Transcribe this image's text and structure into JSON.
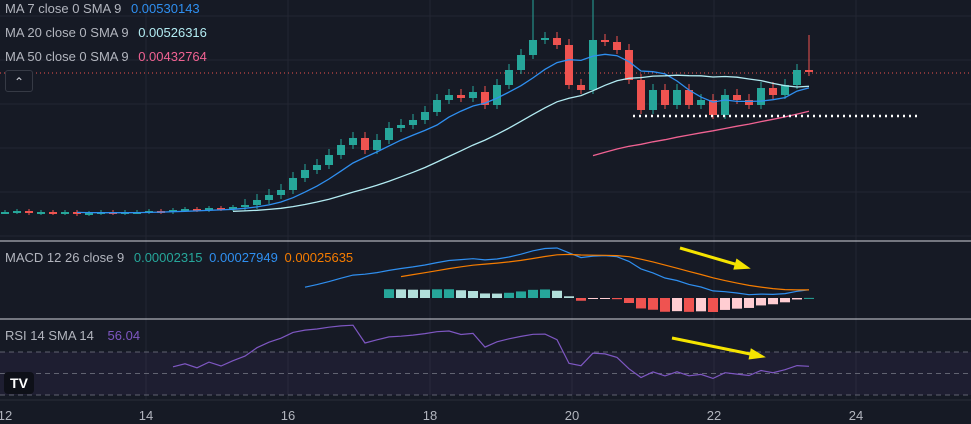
{
  "legend": {
    "ma7": {
      "label": "MA 7 close 0 SMA 9",
      "value": "0.00530143",
      "color": "#2f8ff0"
    },
    "ma20": {
      "label": "MA 20 close 0 SMA 9",
      "value": "0.00526316",
      "color": "#b2ebf2"
    },
    "ma50": {
      "label": "MA 50 close 0 SMA 9",
      "value": "0.00432764",
      "color": "#f06292"
    },
    "macd": {
      "label": "MACD 12 26 close 9",
      "hist": "0.00002315",
      "macd": "0.00027949",
      "signal": "0.00025635"
    },
    "rsi": {
      "label": "RSI 14 SMA 14",
      "value": "56.04"
    }
  },
  "collapse_icon": "chevron-up",
  "logo": "TV",
  "x_axis": [
    "12",
    "14",
    "16",
    "18",
    "20",
    "22",
    "24"
  ],
  "chart_data": {
    "type": "candlestick",
    "colors": {
      "up": "#26a69a",
      "down": "#ef5350",
      "macd": "#2f8ff0",
      "signal": "#f57c00",
      "rsi": "#7e57c2"
    },
    "closes": [
      0.00388,
      0.00389,
      0.00387,
      0.00388,
      0.00387,
      0.00388,
      0.00386,
      0.00387,
      0.00388,
      0.00387,
      0.00388,
      0.00388,
      0.00389,
      0.00388,
      0.0039,
      0.00391,
      0.0039,
      0.00392,
      0.00391,
      0.00393,
      0.00395,
      0.004,
      0.00405,
      0.0041,
      0.00422,
      0.0043,
      0.00435,
      0.00445,
      0.00455,
      0.00462,
      0.0045,
      0.0046,
      0.00472,
      0.00475,
      0.0048,
      0.00488,
      0.005,
      0.00505,
      0.00502,
      0.00508,
      0.00495,
      0.00515,
      0.0053,
      0.00545,
      0.0056,
      0.00562,
      0.00555,
      0.00515,
      0.0051,
      0.0056,
      0.00558,
      0.0055,
      0.0052,
      0.0049,
      0.0051,
      0.00495,
      0.0051,
      0.00495,
      0.005,
      0.00485,
      0.00505,
      0.005,
      0.00495,
      0.00512,
      0.00505,
      0.00515,
      0.0053,
      0.00528
    ],
    "spike_highs": {
      "44": 0.006,
      "49": 0.006,
      "67": 0.00565
    },
    "support_level": 0.00484,
    "last_price": 0.00527,
    "rsi_bands": [
      70,
      50,
      30
    ]
  }
}
